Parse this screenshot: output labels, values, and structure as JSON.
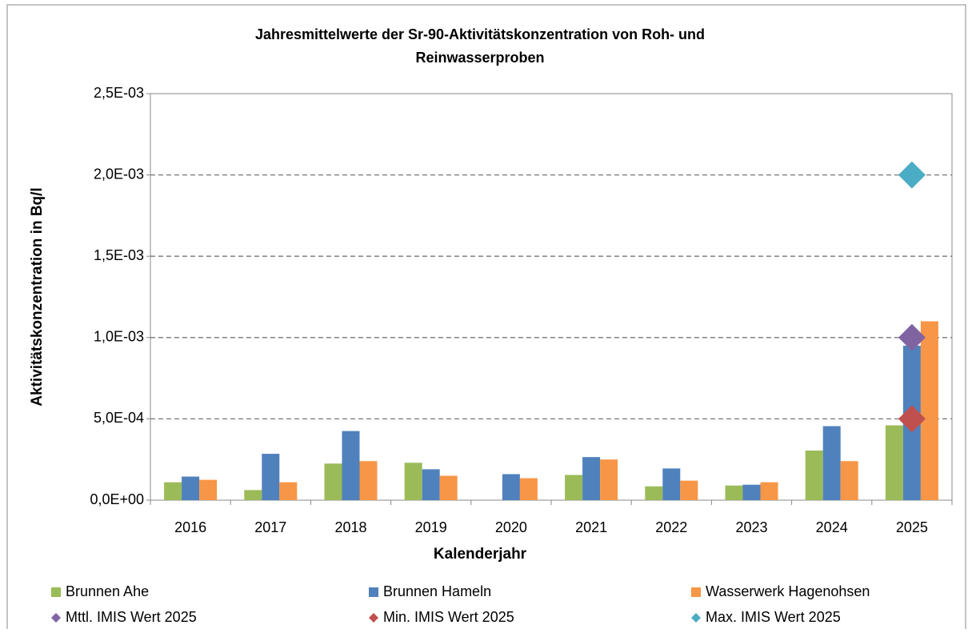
{
  "chart_data": {
    "type": "bar",
    "title": [
      "Jahresmittelwerte der Sr-90-Aktivitätskonzentration von Roh- und",
      "Reinwasserproben"
    ],
    "x_label": "Kalenderjahr",
    "y_label": "Aktivitätskonzentration in Bq/l",
    "categories": [
      "2016",
      "2017",
      "2018",
      "2019",
      "2020",
      "2021",
      "2022",
      "2023",
      "2024",
      "2025"
    ],
    "series": [
      {
        "name": "Brunnen Ahe",
        "color": "#9bbb59",
        "marker": "bar",
        "values": [
          0.00011,
          6.2e-05,
          0.000225,
          0.00023,
          null,
          0.000155,
          8.5e-05,
          9e-05,
          0.000305,
          0.00046
        ]
      },
      {
        "name": "Brunnen Hameln",
        "color": "#4f81bd",
        "marker": "bar",
        "values": [
          0.000145,
          0.000285,
          0.000425,
          0.00019,
          0.00016,
          0.000265,
          0.000195,
          9.5e-05,
          0.000455,
          0.00095
        ]
      },
      {
        "name": "Wasserwerk Hagenohsen",
        "color": "#f79646",
        "marker": "bar",
        "values": [
          0.000125,
          0.00011,
          0.00024,
          0.00015,
          0.000135,
          0.00025,
          0.00012,
          0.00011,
          0.00024,
          0.0011
        ]
      },
      {
        "name": "Mttl. IMIS Wert 2025",
        "color": "#8064a2",
        "marker": "diamond",
        "values": [
          null,
          null,
          null,
          null,
          null,
          null,
          null,
          null,
          null,
          0.001
        ]
      },
      {
        "name": "Min. IMIS Wert 2025",
        "color": "#c0504d",
        "marker": "diamond",
        "values": [
          null,
          null,
          null,
          null,
          null,
          null,
          null,
          null,
          null,
          0.0005
        ]
      },
      {
        "name": "Max. IMIS Wert 2025",
        "color": "#4bacc6",
        "marker": "diamond",
        "values": [
          null,
          null,
          null,
          null,
          null,
          null,
          null,
          null,
          null,
          0.002
        ]
      }
    ],
    "ylim": [
      0,
      0.0025
    ],
    "yticks": [
      {
        "value": 0,
        "label": "0,0E+00"
      },
      {
        "value": 0.0005,
        "label": "5,0E-04"
      },
      {
        "value": 0.001,
        "label": "1,0E-03"
      },
      {
        "value": 0.0015,
        "label": "1,5E-03"
      },
      {
        "value": 0.002,
        "label": "2,0E-03"
      },
      {
        "value": 0.0025,
        "label": "2,5E-03"
      }
    ],
    "grid": true,
    "legend": "bottom"
  }
}
